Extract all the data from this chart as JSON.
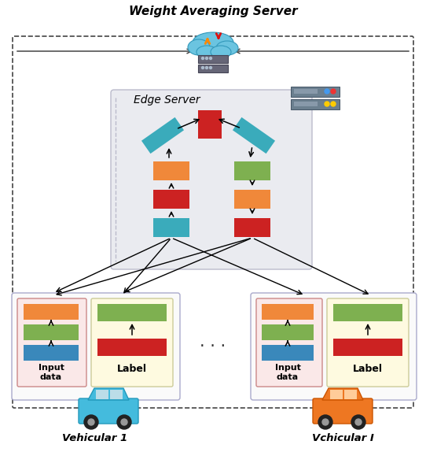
{
  "title": "Weight Averaging Server",
  "edge_server_label": "Edge Server",
  "vehicle1_label": "Vehicular 1",
  "vehicle2_label": "Vchicular I",
  "input_data_label": "Input\ndata",
  "label_text": "Label",
  "dots": "· · ·",
  "colors": {
    "red": "#CC2222",
    "teal": "#3AABBB",
    "orange": "#F0883A",
    "green": "#7EB050",
    "blue": "#3A88BB",
    "cloud_blue": "#6BC4E0",
    "edge_bg": "#EAEBF0",
    "input_bg": "#FBE8E8",
    "label_bg": "#FEFAE0",
    "server_gray": "#6B7F8F",
    "dashed_border": "#CC8888"
  },
  "figsize": [
    5.42,
    5.74
  ],
  "dpi": 100
}
